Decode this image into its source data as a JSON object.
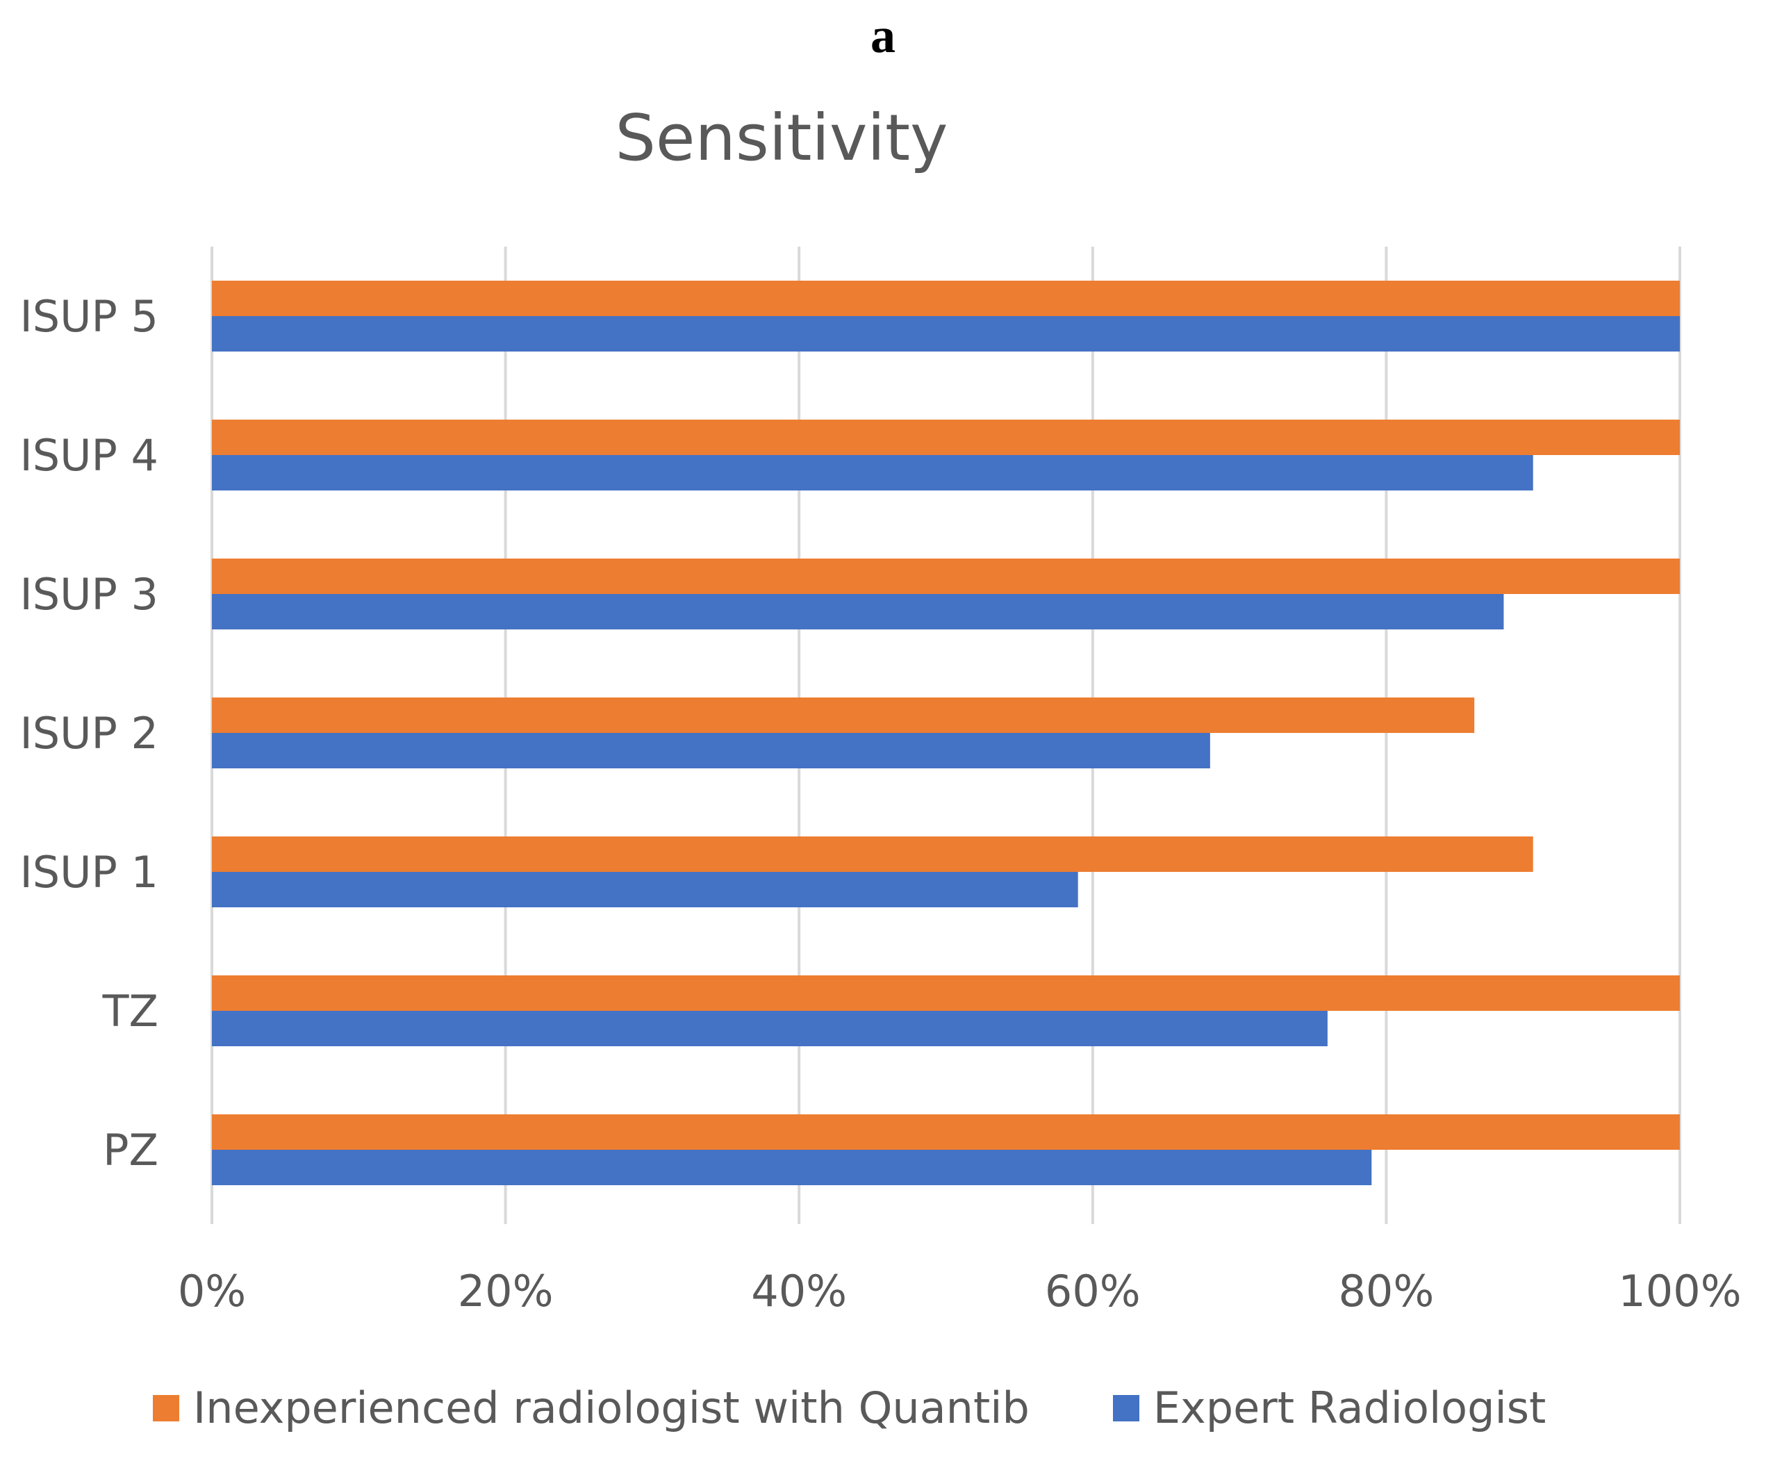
{
  "panel_label": "a",
  "chart_data": {
    "type": "bar",
    "orientation": "horizontal",
    "title": "Sensitivity",
    "categories": [
      "ISUP 5",
      "ISUP 4",
      "ISUP 3",
      "ISUP 2",
      "ISUP 1",
      "TZ",
      "PZ"
    ],
    "series": [
      {
        "name": "Inexperienced radiologist with Quantib",
        "color": "#ED7D31",
        "values": [
          100,
          100,
          100,
          86,
          90,
          100,
          100
        ]
      },
      {
        "name": "Expert Radiologist",
        "color": "#4472C4",
        "values": [
          100,
          90,
          88,
          68,
          59,
          76,
          79
        ]
      }
    ],
    "xlim": [
      0,
      100
    ],
    "xticks": [
      "0%",
      "20%",
      "40%",
      "60%",
      "80%",
      "100%"
    ],
    "xlabel": "",
    "ylabel": "",
    "grid": true,
    "legend_position": "bottom"
  }
}
